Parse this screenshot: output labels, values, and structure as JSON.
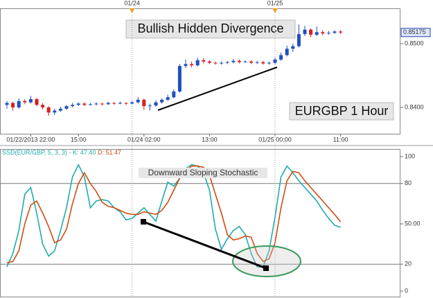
{
  "chart_data": [
    {
      "type": "candlestick",
      "title": "Bullish Hidden Divergence",
      "annotation": "EURGBP 1 Hour",
      "categories": [
        null,
        null,
        null,
        null,
        "01/22/2013 22:00",
        null,
        null,
        null,
        null,
        null,
        null,
        null,
        "15:00",
        null,
        null,
        null,
        null,
        null,
        null,
        null,
        null,
        null,
        null,
        "01/24 02:00",
        null,
        null,
        null,
        null,
        null,
        null,
        null,
        null,
        null,
        null,
        "13:00",
        null,
        null,
        null,
        null,
        null,
        null,
        null,
        null,
        null,
        null,
        "01/25 00:00",
        null,
        null,
        null,
        null,
        null,
        null,
        null,
        null,
        null,
        null,
        "11:00"
      ],
      "top_markers": [
        null,
        null,
        null,
        null,
        null,
        null,
        null,
        null,
        null,
        null,
        null,
        null,
        null,
        null,
        null,
        null,
        null,
        null,
        null,
        null,
        null,
        "01/24",
        null,
        null,
        null,
        null,
        null,
        null,
        null,
        null,
        null,
        null,
        null,
        null,
        null,
        null,
        null,
        null,
        null,
        null,
        null,
        null,
        null,
        null,
        null,
        "01/25",
        null,
        null,
        null,
        null,
        null,
        null,
        null,
        null,
        null,
        null,
        null
      ],
      "open": [
        0.8404,
        0.8407,
        0.84,
        0.841,
        0.8408,
        0.8413,
        0.8404,
        0.84,
        0.8392,
        0.8395,
        0.8398,
        0.8402,
        0.8404,
        0.8406,
        0.8404,
        0.8405,
        0.8406,
        0.8405,
        0.8407,
        0.8406,
        0.8407,
        0.8406,
        0.8408,
        0.8412,
        0.8402,
        0.8403,
        0.8408,
        0.8412,
        0.8416,
        0.8425,
        0.8465,
        0.8468,
        0.8466,
        0.8474,
        0.8472,
        0.847,
        0.8469,
        0.847,
        0.8471,
        0.8473,
        0.8471,
        0.8472,
        0.847,
        0.8471,
        0.8469,
        0.847,
        0.8475,
        0.8482,
        0.8492,
        0.8496,
        0.8515,
        0.8522,
        0.8514,
        0.8518,
        0.8516,
        0.8517,
        0.8519
      ],
      "high": [
        0.841,
        0.8409,
        0.8414,
        0.8413,
        0.8418,
        0.8415,
        0.8407,
        0.8402,
        0.8398,
        0.8401,
        0.8404,
        0.8407,
        0.8408,
        0.8408,
        0.8407,
        0.8408,
        0.8407,
        0.8409,
        0.8408,
        0.8409,
        0.8408,
        0.841,
        0.8416,
        0.8414,
        0.8406,
        0.8411,
        0.8414,
        0.842,
        0.8428,
        0.8468,
        0.8475,
        0.8472,
        0.8478,
        0.8477,
        0.8474,
        0.8472,
        0.8472,
        0.8473,
        0.8476,
        0.8475,
        0.8474,
        0.8474,
        0.8473,
        0.8473,
        0.8472,
        0.8478,
        0.8486,
        0.8497,
        0.85,
        0.853,
        0.8528,
        0.8524,
        0.8527,
        0.8521,
        0.852,
        0.8521,
        0.8521
      ],
      "low": [
        0.8398,
        0.8395,
        0.8398,
        0.8405,
        0.8406,
        0.8402,
        0.8397,
        0.8387,
        0.8388,
        0.8393,
        0.8396,
        0.84,
        0.8402,
        0.8402,
        0.8403,
        0.8403,
        0.8403,
        0.8404,
        0.8404,
        0.8405,
        0.8404,
        0.8405,
        0.8406,
        0.8396,
        0.8395,
        0.8401,
        0.8406,
        0.841,
        0.8414,
        0.8423,
        0.8462,
        0.8463,
        0.8464,
        0.8469,
        0.8468,
        0.8467,
        0.8467,
        0.8468,
        0.8469,
        0.8469,
        0.847,
        0.8468,
        0.8468,
        0.8467,
        0.8467,
        0.8468,
        0.8473,
        0.848,
        0.8487,
        0.8494,
        0.8512,
        0.851,
        0.8512,
        0.8513,
        0.8514,
        0.8515,
        0.8515
      ],
      "close": [
        0.8407,
        0.84,
        0.841,
        0.8408,
        0.8413,
        0.8404,
        0.84,
        0.8392,
        0.8395,
        0.8398,
        0.8402,
        0.8404,
        0.8406,
        0.8404,
        0.8405,
        0.8406,
        0.8405,
        0.8407,
        0.8406,
        0.8407,
        0.8406,
        0.8408,
        0.8412,
        0.8402,
        0.8403,
        0.8408,
        0.8412,
        0.8416,
        0.8425,
        0.8465,
        0.8468,
        0.8466,
        0.8474,
        0.8472,
        0.847,
        0.8469,
        0.847,
        0.8471,
        0.8473,
        0.8471,
        0.8472,
        0.847,
        0.8471,
        0.8469,
        0.847,
        0.8475,
        0.8482,
        0.8492,
        0.8496,
        0.8515,
        0.8522,
        0.8514,
        0.8518,
        0.8516,
        0.8517,
        0.8519,
        0.85175
      ],
      "up_color": "#1f4fc0",
      "down_color": "#d42020",
      "ylim": [
        0.83587,
        0.85554
      ],
      "yticks": [
        {
          "value": 0.85,
          "label": "0.8500"
        },
        {
          "value": 0.84,
          "label": "0.8400"
        }
      ],
      "last_price": 0.85175
    },
    {
      "type": "line",
      "title": "SSD(EUR/GBP, 5, 3, 3) -",
      "annotation": "Downward Sloping Stochastic",
      "series": [
        {
          "name": "K:",
          "color": "#20aaaa",
          "last_value": {
            "value": 47.4,
            "label": "47.40"
          },
          "values": [
            18,
            28,
            45,
            72,
            77,
            58,
            35,
            26,
            30,
            45,
            62,
            85,
            94,
            85,
            62,
            67,
            68,
            67,
            62,
            59,
            53,
            54,
            58,
            62,
            57,
            52,
            67,
            81,
            78,
            84,
            91,
            94,
            93,
            88,
            75,
            46,
            31,
            39,
            45,
            48,
            42,
            28,
            18,
            18,
            30,
            55,
            85,
            93,
            88,
            82,
            77,
            72,
            67,
            60,
            54,
            49,
            47.4
          ]
        },
        {
          "name": "D:",
          "color": "#d24a10",
          "last_value": 51.47,
          "values": [
            21,
            22,
            30,
            50,
            64,
            67,
            58,
            48,
            36,
            38,
            46,
            65,
            80,
            88,
            80,
            74,
            66,
            63,
            62,
            60,
            58,
            57,
            57,
            59,
            58,
            57,
            60,
            66,
            75,
            84,
            89,
            93,
            93,
            92,
            86,
            72,
            58,
            42,
            38,
            39,
            41,
            40,
            28,
            22,
            24,
            36,
            62,
            82,
            89,
            88,
            82,
            77,
            72,
            67,
            62,
            57,
            51.47
          ]
        }
      ],
      "ylim": [
        -4.12,
        105.67
      ],
      "yticks": [
        100,
        80,
        {
          "value": 50,
          "label": "50.00"
        },
        20,
        0
      ],
      "levels": [
        80,
        20
      ]
    }
  ]
}
